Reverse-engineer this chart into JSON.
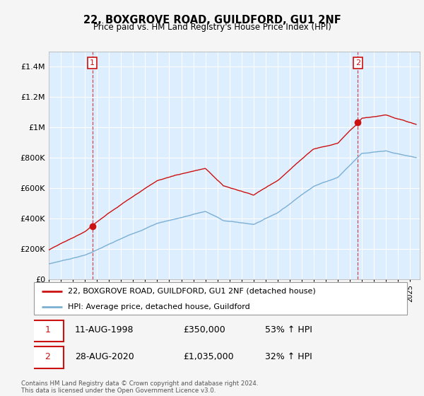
{
  "title": "22, BOXGROVE ROAD, GUILDFORD, GU1 2NF",
  "subtitle": "Price paid vs. HM Land Registry's House Price Index (HPI)",
  "legend_line1": "22, BOXGROVE ROAD, GUILDFORD, GU1 2NF (detached house)",
  "legend_line2": "HPI: Average price, detached house, Guildford",
  "sale1_label": "1",
  "sale1_date": "11-AUG-1998",
  "sale1_price": "£350,000",
  "sale1_hpi": "53% ↑ HPI",
  "sale1_year": 1998.62,
  "sale1_value": 350000,
  "sale2_label": "2",
  "sale2_date": "28-AUG-2020",
  "sale2_price": "£1,035,000",
  "sale2_hpi": "32% ↑ HPI",
  "sale2_year": 2020.65,
  "sale2_value": 1035000,
  "hpi_color": "#7bafd4",
  "price_color": "#cc1111",
  "plot_bg_color": "#ddeeff",
  "background_color": "#f0f0f0",
  "grid_color": "#ffffff",
  "yticks": [
    0,
    200000,
    400000,
    600000,
    800000,
    1000000,
    1200000,
    1400000
  ],
  "ylabels": [
    "£0",
    "£200K",
    "£400K",
    "£600K",
    "£800K",
    "£1M",
    "£1.2M",
    "£1.4M"
  ],
  "ylim": [
    0,
    1500000
  ],
  "xlim_start": 1995.0,
  "xlim_end": 2025.8,
  "footer": "Contains HM Land Registry data © Crown copyright and database right 2024.\nThis data is licensed under the Open Government Licence v3.0."
}
